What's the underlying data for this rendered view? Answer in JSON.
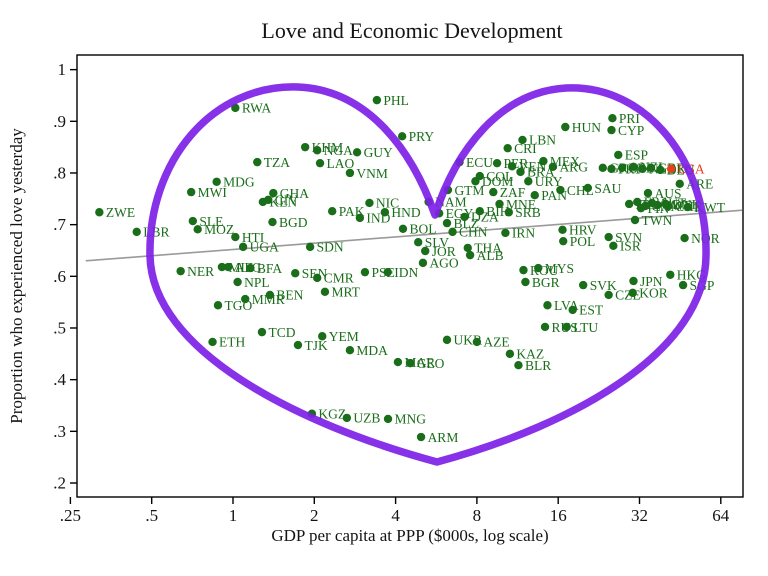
{
  "chart_data": {
    "type": "scatter",
    "title": "Love and Economic Development",
    "xlabel": "GDP per capita at PPP ($000s, log scale)",
    "ylabel": "Proportion who experienced love yesterday",
    "x_scale": "log2",
    "xlim": [
      0.25,
      77
    ],
    "ylim": [
      0.17,
      1.03
    ],
    "x_ticks": {
      "values": [
        0.25,
        0.5,
        1,
        2,
        4,
        8,
        16,
        32,
        64
      ],
      "labels": [
        ".25",
        ".5",
        "1",
        "2",
        "4",
        "8",
        "16",
        "32",
        "64"
      ]
    },
    "y_ticks": {
      "values": [
        0.2,
        0.3,
        0.4,
        0.5,
        0.6,
        0.7,
        0.8,
        0.9,
        1.0
      ],
      "labels": [
        ".2",
        ".3",
        ".4",
        ".5",
        ".6",
        ".7",
        ".8",
        ".9",
        "1"
      ]
    },
    "grid": false,
    "legend": "none",
    "colors": {
      "point": "#1a6e1a",
      "label": "#1a6e1a",
      "usa": "#e8401c",
      "heart": "#7d1fe6",
      "trend": "#9a9a9a",
      "axis": "#000000"
    },
    "trend_line": {
      "x1": 0.285,
      "y1": 0.63,
      "x2": 77,
      "y2": 0.728
    },
    "annotations": [
      "purple heart outline drawn over the scatter"
    ],
    "points": [
      {
        "code": "ZWE",
        "gdp": 0.32,
        "love": 0.724
      },
      {
        "code": "LBR",
        "gdp": 0.44,
        "love": 0.686
      },
      {
        "code": "MWI",
        "gdp": 0.7,
        "love": 0.763
      },
      {
        "code": "MDG",
        "gdp": 0.87,
        "love": 0.783
      },
      {
        "code": "TZA",
        "gdp": 1.23,
        "love": 0.821
      },
      {
        "code": "RWA",
        "gdp": 1.02,
        "love": 0.926
      },
      {
        "code": "SLE",
        "gdp": 0.71,
        "love": 0.707
      },
      {
        "code": "MOZ",
        "gdp": 0.74,
        "love": 0.691
      },
      {
        "code": "HTI",
        "gdp": 1.02,
        "love": 0.676
      },
      {
        "code": "UGA",
        "gdp": 1.09,
        "love": 0.657
      },
      {
        "code": "BGD",
        "gdp": 1.4,
        "love": 0.705
      },
      {
        "code": "GHA",
        "gdp": 1.41,
        "love": 0.761
      },
      {
        "code": "KEN",
        "gdp": 1.29,
        "love": 0.744
      },
      {
        "code": "CIV",
        "gdp": 1.35,
        "love": 0.748
      },
      {
        "code": "NER",
        "gdp": 0.64,
        "love": 0.61
      },
      {
        "code": "MLI",
        "gdp": 0.91,
        "love": 0.618
      },
      {
        "code": "AFG",
        "gdp": 0.96,
        "love": 0.618
      },
      {
        "code": "BFA",
        "gdp": 1.16,
        "love": 0.616
      },
      {
        "code": "NPL",
        "gdp": 1.04,
        "love": 0.589
      },
      {
        "code": "SEN",
        "gdp": 1.7,
        "love": 0.606
      },
      {
        "code": "CMR",
        "gdp": 2.05,
        "love": 0.597
      },
      {
        "code": "TGO",
        "gdp": 0.88,
        "love": 0.544
      },
      {
        "code": "MMR",
        "gdp": 1.11,
        "love": 0.556
      },
      {
        "code": "BEN",
        "gdp": 1.37,
        "love": 0.564
      },
      {
        "code": "MRT",
        "gdp": 2.19,
        "love": 0.57
      },
      {
        "code": "TCD",
        "gdp": 1.28,
        "love": 0.492
      },
      {
        "code": "ETH",
        "gdp": 0.84,
        "love": 0.473
      },
      {
        "code": "TJK",
        "gdp": 1.74,
        "love": 0.467
      },
      {
        "code": "YEM",
        "gdp": 2.14,
        "love": 0.484
      },
      {
        "code": "MDA",
        "gdp": 2.71,
        "love": 0.457
      },
      {
        "code": "MAR",
        "gdp": 4.08,
        "love": 0.434
      },
      {
        "code": "GEO",
        "gdp": 4.53,
        "love": 0.432
      },
      {
        "code": "KGZ",
        "gdp": 1.96,
        "love": 0.334
      },
      {
        "code": "UZB",
        "gdp": 2.64,
        "love": 0.326
      },
      {
        "code": "MNG",
        "gdp": 3.75,
        "love": 0.324
      },
      {
        "code": "ARM",
        "gdp": 4.97,
        "love": 0.289
      },
      {
        "code": "UKR",
        "gdp": 6.2,
        "love": 0.477
      },
      {
        "code": "AZE",
        "gdp": 8.0,
        "love": 0.473
      },
      {
        "code": "KAZ",
        "gdp": 10.6,
        "love": 0.45
      },
      {
        "code": "BLR",
        "gdp": 11.4,
        "love": 0.428
      },
      {
        "code": "RUS",
        "gdp": 14.3,
        "love": 0.502
      },
      {
        "code": "LTU",
        "gdp": 17.2,
        "love": 0.502
      },
      {
        "code": "LVA",
        "gdp": 14.6,
        "love": 0.544
      },
      {
        "code": "EST",
        "gdp": 18.1,
        "love": 0.535
      },
      {
        "code": "SVK",
        "gdp": 19.8,
        "love": 0.583
      },
      {
        "code": "CZE",
        "gdp": 24.6,
        "love": 0.564
      },
      {
        "code": "KOR",
        "gdp": 30.2,
        "love": 0.568
      },
      {
        "code": "JPN",
        "gdp": 30.4,
        "love": 0.591
      },
      {
        "code": "HKG",
        "gdp": 41.6,
        "love": 0.603
      },
      {
        "code": "SGP",
        "gdp": 46.4,
        "love": 0.583
      },
      {
        "code": "BGR",
        "gdp": 12.1,
        "love": 0.589
      },
      {
        "code": "MYS",
        "gdp": 13.5,
        "love": 0.616
      },
      {
        "code": "ROU",
        "gdp": 11.9,
        "love": 0.612
      },
      {
        "code": "HRV",
        "gdp": 16.6,
        "love": 0.69
      },
      {
        "code": "POL",
        "gdp": 16.7,
        "love": 0.668
      },
      {
        "code": "SVN",
        "gdp": 24.6,
        "love": 0.676
      },
      {
        "code": "ISR",
        "gdp": 25.6,
        "love": 0.659
      },
      {
        "code": "TWN",
        "gdp": 30.8,
        "love": 0.709
      },
      {
        "code": "NOR",
        "gdp": 47.0,
        "love": 0.674
      },
      {
        "code": "IRN",
        "gdp": 10.2,
        "love": 0.684
      },
      {
        "code": "SDN",
        "gdp": 1.93,
        "love": 0.657
      },
      {
        "code": "PAK",
        "gdp": 2.33,
        "love": 0.726
      },
      {
        "code": "IND",
        "gdp": 2.95,
        "love": 0.713
      },
      {
        "code": "NIC",
        "gdp": 3.2,
        "love": 0.742
      },
      {
        "code": "HND",
        "gdp": 3.65,
        "love": 0.724
      },
      {
        "code": "PSE",
        "gdp": 3.08,
        "love": 0.608
      },
      {
        "code": "IDN",
        "gdp": 3.74,
        "love": 0.608
      },
      {
        "code": "BOL",
        "gdp": 4.26,
        "love": 0.692
      },
      {
        "code": "SLV",
        "gdp": 4.85,
        "love": 0.666
      },
      {
        "code": "JOR",
        "gdp": 5.15,
        "love": 0.649
      },
      {
        "code": "AGO",
        "gdp": 5.05,
        "love": 0.626
      },
      {
        "code": "THA",
        "gdp": 7.4,
        "love": 0.655
      },
      {
        "code": "ALB",
        "gdp": 7.55,
        "love": 0.641
      },
      {
        "code": "NAM",
        "gdp": 5.3,
        "love": 0.744
      },
      {
        "code": "EGY",
        "gdp": 5.8,
        "love": 0.722
      },
      {
        "code": "BLZ",
        "gdp": 6.2,
        "love": 0.703
      },
      {
        "code": "CHN",
        "gdp": 6.5,
        "love": 0.686
      },
      {
        "code": "SRB",
        "gdp": 10.5,
        "love": 0.724
      },
      {
        "code": "BIH",
        "gdp": 8.2,
        "love": 0.726
      },
      {
        "code": "MNE",
        "gdp": 9.7,
        "love": 0.74
      },
      {
        "code": "DZA",
        "gdp": 7.2,
        "love": 0.715
      },
      {
        "code": "ECU",
        "gdp": 6.9,
        "love": 0.821
      },
      {
        "code": "PER",
        "gdp": 9.5,
        "love": 0.819
      },
      {
        "code": "COL",
        "gdp": 8.2,
        "love": 0.794
      },
      {
        "code": "DOM",
        "gdp": 7.9,
        "love": 0.784
      },
      {
        "code": "CRI",
        "gdp": 10.4,
        "love": 0.848
      },
      {
        "code": "LBN",
        "gdp": 11.8,
        "love": 0.864
      },
      {
        "code": "MEX",
        "gdp": 14.1,
        "love": 0.823
      },
      {
        "code": "ARG",
        "gdp": 15.3,
        "love": 0.812
      },
      {
        "code": "URY",
        "gdp": 12.4,
        "love": 0.784
      },
      {
        "code": "ZAF",
        "gdp": 9.2,
        "love": 0.763
      },
      {
        "code": "PAN",
        "gdp": 13.1,
        "love": 0.757
      },
      {
        "code": "CHL",
        "gdp": 16.3,
        "love": 0.767
      },
      {
        "code": "VEN",
        "gdp": 10.8,
        "love": 0.813
      },
      {
        "code": "BRA",
        "gdp": 11.6,
        "love": 0.802
      },
      {
        "code": "GTM",
        "gdp": 6.25,
        "love": 0.767
      },
      {
        "code": "HUN",
        "gdp": 17.0,
        "love": 0.889
      },
      {
        "code": "PRI",
        "gdp": 25.4,
        "love": 0.906
      },
      {
        "code": "CYP",
        "gdp": 25.2,
        "love": 0.883
      },
      {
        "code": "ESP",
        "gdp": 26.7,
        "love": 0.835
      },
      {
        "code": "SAU",
        "gdp": 20.6,
        "love": 0.771
      },
      {
        "code": "ARE",
        "gdp": 45.1,
        "love": 0.779
      },
      {
        "code": "KWT",
        "gdp": 48.3,
        "love": 0.734
      },
      {
        "code": "AUS",
        "gdp": 34.4,
        "love": 0.761
      },
      {
        "code": "GRC",
        "gdp": 23.4,
        "love": 0.81
      },
      {
        "code": "PRT",
        "gdp": 25.2,
        "love": 0.808
      },
      {
        "code": "BEL",
        "gdp": 27.6,
        "love": 0.81
      },
      {
        "code": "NZL",
        "gdp": 30.4,
        "love": 0.812
      },
      {
        "code": "NLD",
        "gdp": 32.8,
        "love": 0.808
      },
      {
        "code": "GBR",
        "gdp": 35.3,
        "love": 0.81
      },
      {
        "code": "DEU",
        "gdp": 38.2,
        "love": 0.806
      },
      {
        "code": "ITA",
        "gdp": 29.3,
        "love": 0.74
      },
      {
        "code": "FRA",
        "gdp": 31.4,
        "love": 0.744
      },
      {
        "code": "CAN",
        "gdp": 33.6,
        "love": 0.736
      },
      {
        "code": "AUT",
        "gdp": 35.6,
        "love": 0.742
      },
      {
        "code": "SWE",
        "gdp": 37.3,
        "love": 0.738
      },
      {
        "code": "DNK",
        "gdp": 40.0,
        "love": 0.74
      },
      {
        "code": "CHE",
        "gdp": 41.0,
        "love": 0.736
      },
      {
        "code": "FIN",
        "gdp": 32.4,
        "love": 0.732
      },
      {
        "code": "PHL",
        "gdp": 3.41,
        "love": 0.941
      },
      {
        "code": "PRY",
        "gdp": 4.23,
        "love": 0.871
      },
      {
        "code": "KHM",
        "gdp": 1.85,
        "love": 0.85
      },
      {
        "code": "NGA",
        "gdp": 2.05,
        "love": 0.844
      },
      {
        "code": "GUY",
        "gdp": 2.88,
        "love": 0.84
      },
      {
        "code": "LAO",
        "gdp": 2.1,
        "love": 0.819
      },
      {
        "code": "VNM",
        "gdp": 2.71,
        "love": 0.8
      },
      {
        "code": "USA",
        "gdp": 41.9,
        "love": 0.808,
        "highlight": true
      }
    ]
  }
}
